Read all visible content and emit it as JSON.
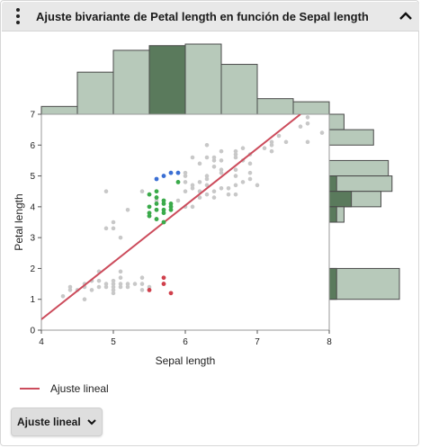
{
  "header": {
    "title": "Ajuste bivariante de Petal length en función de Sepal length",
    "menu_icon": "vertical-ellipsis-icon",
    "collapse_icon": "chevron-up-icon"
  },
  "legend": {
    "label": "Ajuste lineal",
    "color": "#cc4c5c"
  },
  "fit_button": {
    "label": "Ajuste lineal",
    "icon": "chevron-down-icon"
  },
  "colors": {
    "points": "#c8c8c8",
    "selected_blue": "#3b6fd4",
    "selected_green": "#3aaa4a",
    "selected_red": "#d0404c",
    "hist_fill": "#b7c9ba",
    "hist_highlight": "#5a7a5c",
    "hist_stroke": "#4a4a4a"
  },
  "chart_data": {
    "type": "scatter",
    "xlabel": "Sepal length",
    "ylabel": "Petal length",
    "xlim": [
      4,
      8
    ],
    "ylim": [
      0,
      7
    ],
    "x_ticks": [
      "4",
      "5",
      "6",
      "7",
      "8"
    ],
    "y_ticks": [
      "0",
      "1",
      "2",
      "3",
      "4",
      "5",
      "6",
      "7"
    ],
    "grid": false,
    "fit_line": {
      "name": "Ajuste lineal",
      "x": [
        4.0,
        7.6
      ],
      "y": [
        0.35,
        7.0
      ]
    },
    "points": [
      [
        4.3,
        1.1
      ],
      [
        4.4,
        1.3
      ],
      [
        4.4,
        1.4
      ],
      [
        4.5,
        1.3
      ],
      [
        4.6,
        1.0
      ],
      [
        4.6,
        1.4
      ],
      [
        4.6,
        1.5
      ],
      [
        4.7,
        1.3
      ],
      [
        4.7,
        1.6
      ],
      [
        4.8,
        1.4
      ],
      [
        4.8,
        1.6
      ],
      [
        4.8,
        1.9
      ],
      [
        4.9,
        1.4
      ],
      [
        4.9,
        1.5
      ],
      [
        4.9,
        3.3
      ],
      [
        4.9,
        4.5
      ],
      [
        5.0,
        1.2
      ],
      [
        5.0,
        1.3
      ],
      [
        5.0,
        1.4
      ],
      [
        5.0,
        1.5
      ],
      [
        5.0,
        1.6
      ],
      [
        5.0,
        3.3
      ],
      [
        5.0,
        3.5
      ],
      [
        5.1,
        1.4
      ],
      [
        5.1,
        1.5
      ],
      [
        5.1,
        1.7
      ],
      [
        5.1,
        1.9
      ],
      [
        5.1,
        3.0
      ],
      [
        5.2,
        1.4
      ],
      [
        5.2,
        1.5
      ],
      [
        5.2,
        3.9
      ],
      [
        5.3,
        1.5
      ],
      [
        5.4,
        1.3
      ],
      [
        5.4,
        1.5
      ],
      [
        5.4,
        1.7
      ],
      [
        5.4,
        4.5
      ],
      [
        5.5,
        1.3
      ],
      [
        5.5,
        1.4
      ],
      [
        5.5,
        3.7
      ],
      [
        5.5,
        3.8
      ],
      [
        5.6,
        3.6
      ],
      [
        5.6,
        3.9
      ],
      [
        5.6,
        4.2
      ],
      [
        5.7,
        3.5
      ],
      [
        5.7,
        4.1
      ],
      [
        5.8,
        3.9
      ],
      [
        5.8,
        4.0
      ],
      [
        5.8,
        5.1
      ],
      [
        5.9,
        4.2
      ],
      [
        5.9,
        4.8
      ],
      [
        5.9,
        5.1
      ],
      [
        6.0,
        4.0
      ],
      [
        6.0,
        4.5
      ],
      [
        6.0,
        4.8
      ],
      [
        6.0,
        5.0
      ],
      [
        6.0,
        5.1
      ],
      [
        6.1,
        4.0
      ],
      [
        6.1,
        4.6
      ],
      [
        6.1,
        4.7
      ],
      [
        6.1,
        5.6
      ],
      [
        6.2,
        4.3
      ],
      [
        6.2,
        4.5
      ],
      [
        6.2,
        4.8
      ],
      [
        6.2,
        5.4
      ],
      [
        6.3,
        4.4
      ],
      [
        6.3,
        4.7
      ],
      [
        6.3,
        4.9
      ],
      [
        6.3,
        5.0
      ],
      [
        6.3,
        5.6
      ],
      [
        6.3,
        6.0
      ],
      [
        6.4,
        4.3
      ],
      [
        6.4,
        4.5
      ],
      [
        6.4,
        5.3
      ],
      [
        6.4,
        5.5
      ],
      [
        6.4,
        5.6
      ],
      [
        6.5,
        4.6
      ],
      [
        6.5,
        5.1
      ],
      [
        6.5,
        5.2
      ],
      [
        6.5,
        5.5
      ],
      [
        6.5,
        5.8
      ],
      [
        6.6,
        4.4
      ],
      [
        6.6,
        4.6
      ],
      [
        6.7,
        4.4
      ],
      [
        6.7,
        4.7
      ],
      [
        6.7,
        5.0
      ],
      [
        6.7,
        5.2
      ],
      [
        6.7,
        5.6
      ],
      [
        6.7,
        5.7
      ],
      [
        6.7,
        5.8
      ],
      [
        6.8,
        4.8
      ],
      [
        6.8,
        5.5
      ],
      [
        6.8,
        5.9
      ],
      [
        6.9,
        4.9
      ],
      [
        6.9,
        5.1
      ],
      [
        6.9,
        5.4
      ],
      [
        6.9,
        5.7
      ],
      [
        7.0,
        4.7
      ],
      [
        7.1,
        5.9
      ],
      [
        7.2,
        5.8
      ],
      [
        7.2,
        6.0
      ],
      [
        7.2,
        6.1
      ],
      [
        7.3,
        6.3
      ],
      [
        7.4,
        6.1
      ],
      [
        7.6,
        6.6
      ],
      [
        7.7,
        6.1
      ],
      [
        7.7,
        6.7
      ],
      [
        7.7,
        6.9
      ],
      [
        7.9,
        6.4
      ]
    ],
    "selected_blue": [
      [
        5.6,
        4.9
      ],
      [
        5.7,
        5.0
      ],
      [
        5.8,
        5.1
      ],
      [
        5.9,
        5.1
      ]
    ],
    "selected_green": [
      [
        5.5,
        4.0
      ],
      [
        5.5,
        4.4
      ],
      [
        5.5,
        3.8
      ],
      [
        5.5,
        3.7
      ],
      [
        5.6,
        4.5
      ],
      [
        5.6,
        4.1
      ],
      [
        5.6,
        3.9
      ],
      [
        5.6,
        3.6
      ],
      [
        5.6,
        4.3
      ],
      [
        5.7,
        4.2
      ],
      [
        5.7,
        4.1
      ],
      [
        5.7,
        3.5
      ],
      [
        5.7,
        3.9
      ],
      [
        5.7,
        3.8
      ],
      [
        5.8,
        4.1
      ],
      [
        5.8,
        3.9
      ],
      [
        5.8,
        4.0
      ],
      [
        5.9,
        4.8
      ]
    ],
    "selected_red": [
      [
        5.5,
        1.3
      ],
      [
        5.7,
        1.7
      ],
      [
        5.7,
        1.5
      ],
      [
        5.8,
        1.2
      ]
    ],
    "histogram_top": {
      "bins": [
        [
          4.0,
          4.5
        ],
        [
          4.5,
          5.0
        ],
        [
          5.0,
          5.5
        ],
        [
          5.5,
          6.0
        ],
        [
          6.0,
          6.5
        ],
        [
          6.5,
          7.0
        ],
        [
          7.0,
          7.5
        ],
        [
          7.5,
          8.0
        ]
      ],
      "counts": [
        5,
        27,
        41,
        44,
        45,
        32,
        10,
        8
      ],
      "highlight": [
        0,
        0,
        0,
        44,
        0,
        0,
        0,
        0
      ]
    },
    "histogram_right": {
      "bins": [
        [
          6.5,
          7.0
        ],
        [
          6.0,
          6.5
        ],
        [
          5.5,
          6.0
        ],
        [
          5.0,
          5.5
        ],
        [
          4.5,
          5.0
        ],
        [
          4.0,
          4.5
        ],
        [
          3.5,
          4.0
        ],
        [
          1.0,
          2.0
        ]
      ],
      "counts": [
        4,
        12,
        0,
        16,
        17,
        14,
        4,
        19
      ],
      "highlight": [
        0,
        0,
        0,
        0,
        2,
        6,
        2,
        2
      ]
    }
  }
}
